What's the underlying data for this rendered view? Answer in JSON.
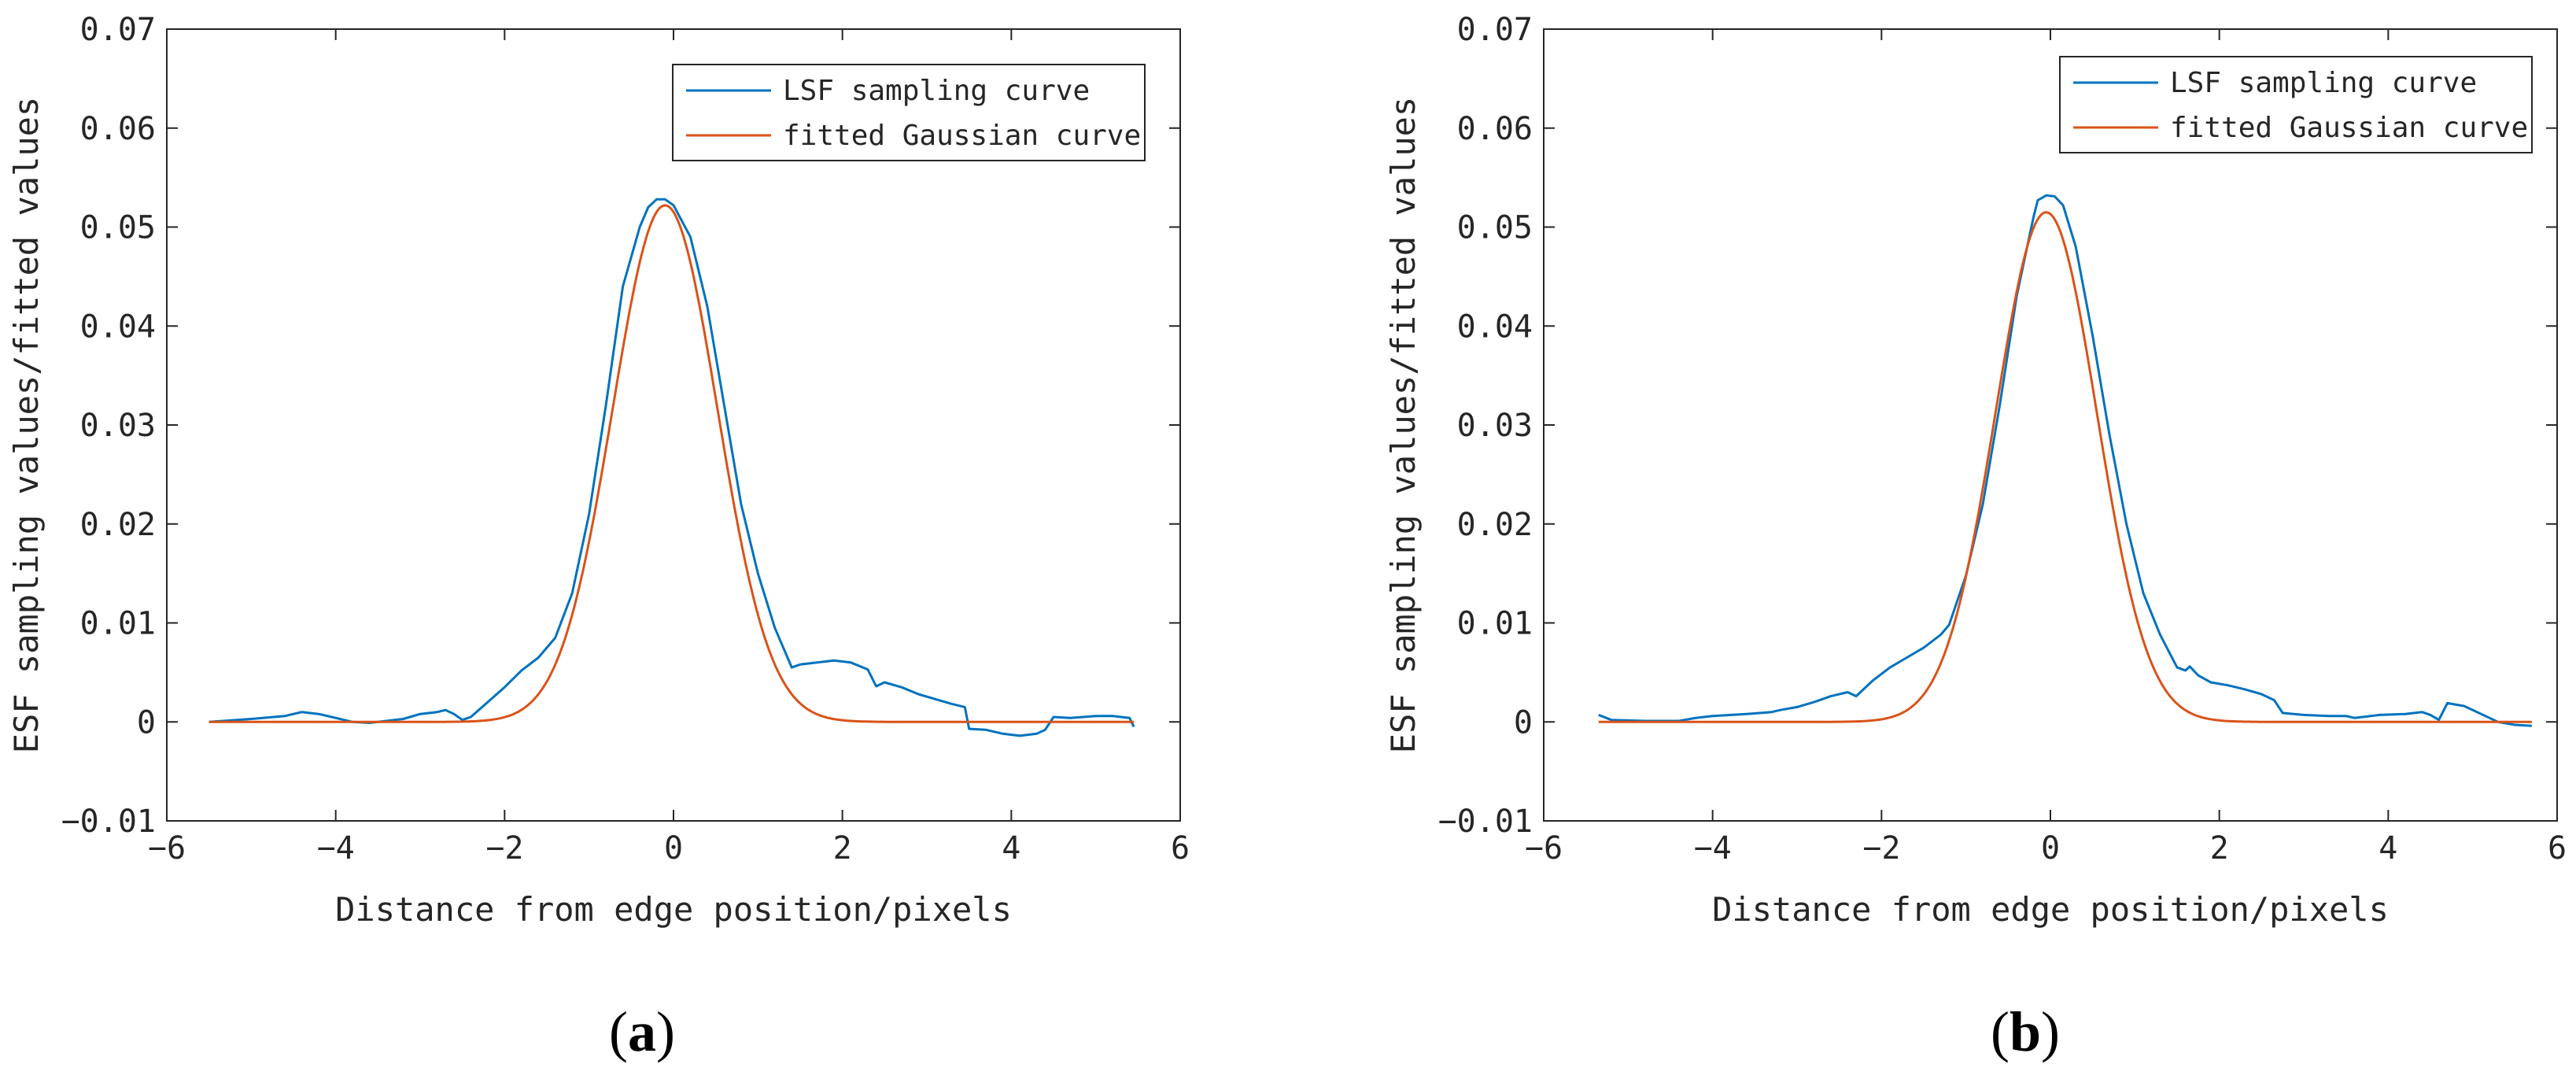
{
  "chart_data": [
    {
      "panel": "(a)",
      "panel_letter": "a",
      "type": "line",
      "title": "",
      "xlabel": "Distance from edge position/pixels",
      "ylabel": "ESF sampling values/fitted values",
      "xlim": [
        -6,
        6
      ],
      "ylim": [
        -0.01,
        0.07
      ],
      "xticks": [
        -6,
        -4,
        -2,
        0,
        2,
        4,
        6
      ],
      "xtick_labels": [
        "−6",
        "−4",
        "−2",
        "0",
        "2",
        "4",
        "6"
      ],
      "yticks": [
        -0.01,
        0,
        0.01,
        0.02,
        0.03,
        0.04,
        0.05,
        0.06,
        0.07
      ],
      "ytick_labels": [
        "−0.01",
        "0",
        "0.01",
        "0.02",
        "0.03",
        "0.04",
        "0.05",
        "0.06",
        "0.07"
      ],
      "grid": false,
      "legend_position": "top-right",
      "series": [
        {
          "name": "LSF sampling curve",
          "color": "#0072BD",
          "x": [
            -5.5,
            -5.0,
            -4.6,
            -4.4,
            -4.2,
            -4.0,
            -3.8,
            -3.6,
            -3.4,
            -3.2,
            -3.0,
            -2.8,
            -2.7,
            -2.6,
            -2.5,
            -2.4,
            -2.2,
            -2.0,
            -1.8,
            -1.6,
            -1.4,
            -1.2,
            -1.0,
            -0.8,
            -0.6,
            -0.4,
            -0.3,
            -0.2,
            -0.1,
            0.0,
            0.2,
            0.4,
            0.6,
            0.8,
            1.0,
            1.2,
            1.4,
            1.5,
            1.7,
            1.9,
            2.1,
            2.3,
            2.4,
            2.5,
            2.7,
            2.9,
            3.1,
            3.3,
            3.45,
            3.5,
            3.7,
            3.9,
            4.1,
            4.3,
            4.4,
            4.5,
            4.7,
            5.0,
            5.2,
            5.4,
            5.45
          ],
          "y": [
            0.0,
            0.0003,
            0.0006,
            0.001,
            0.0008,
            0.0004,
            0.0,
            -0.0001,
            0.0001,
            0.0003,
            0.0008,
            0.001,
            0.0012,
            0.0008,
            0.0002,
            0.0005,
            0.002,
            0.0035,
            0.0052,
            0.0065,
            0.0085,
            0.013,
            0.021,
            0.032,
            0.044,
            0.05,
            0.052,
            0.0528,
            0.0528,
            0.0522,
            0.049,
            0.042,
            0.032,
            0.022,
            0.015,
            0.0095,
            0.0055,
            0.0058,
            0.006,
            0.0062,
            0.006,
            0.0053,
            0.0036,
            0.004,
            0.0035,
            0.0028,
            0.0023,
            0.0018,
            0.0015,
            -0.0007,
            -0.0008,
            -0.0012,
            -0.0014,
            -0.0012,
            -0.0008,
            0.0005,
            0.0004,
            0.0006,
            0.0006,
            0.0004,
            -0.0005
          ]
        },
        {
          "name": "fitted Gaussian curve",
          "color": "#D95319",
          "gaussian": {
            "amplitude": 0.0522,
            "mean": -0.1,
            "sigma": 0.62,
            "x_start": -5.5,
            "x_end": 5.45
          }
        }
      ]
    },
    {
      "panel": "(b)",
      "panel_letter": "b",
      "type": "line",
      "title": "",
      "xlabel": "Distance from edge position/pixels",
      "ylabel": "ESF sampling values/fitted values",
      "xlim": [
        -6,
        6
      ],
      "ylim": [
        -0.01,
        0.07
      ],
      "xticks": [
        -6,
        -4,
        -2,
        0,
        2,
        4,
        6
      ],
      "xtick_labels": [
        "−6",
        "−4",
        "−2",
        "0",
        "2",
        "4",
        "6"
      ],
      "yticks": [
        -0.01,
        0,
        0.01,
        0.02,
        0.03,
        0.04,
        0.05,
        0.06,
        0.07
      ],
      "ytick_labels": [
        "−0.01",
        "0",
        "0.01",
        "0.02",
        "0.03",
        "0.04",
        "0.05",
        "0.06",
        "0.07"
      ],
      "grid": false,
      "legend_position": "top-right",
      "series": [
        {
          "name": "LSF sampling curve",
          "color": "#0072BD",
          "x": [
            -5.35,
            -5.2,
            -4.8,
            -4.4,
            -4.2,
            -4.0,
            -3.6,
            -3.3,
            -3.2,
            -3.0,
            -2.8,
            -2.6,
            -2.4,
            -2.3,
            -2.1,
            -1.9,
            -1.7,
            -1.5,
            -1.3,
            -1.2,
            -1.0,
            -0.8,
            -0.6,
            -0.4,
            -0.2,
            -0.15,
            -0.05,
            0.05,
            0.15,
            0.3,
            0.5,
            0.7,
            0.9,
            1.1,
            1.3,
            1.5,
            1.6,
            1.65,
            1.75,
            1.9,
            2.1,
            2.3,
            2.5,
            2.65,
            2.75,
            3.0,
            3.3,
            3.5,
            3.6,
            3.9,
            4.2,
            4.4,
            4.5,
            4.6,
            4.7,
            4.9,
            5.1,
            5.3,
            5.5,
            5.7
          ],
          "y": [
            0.0007,
            0.0002,
            0.0001,
            0.0001,
            0.0004,
            0.0006,
            0.0008,
            0.001,
            0.0012,
            0.0015,
            0.002,
            0.0026,
            0.003,
            0.0026,
            0.0042,
            0.0055,
            0.0065,
            0.0075,
            0.0088,
            0.0098,
            0.0148,
            0.022,
            0.032,
            0.043,
            0.051,
            0.0527,
            0.0532,
            0.0531,
            0.0522,
            0.048,
            0.039,
            0.029,
            0.02,
            0.013,
            0.0088,
            0.0055,
            0.0052,
            0.0056,
            0.0047,
            0.004,
            0.0037,
            0.0033,
            0.0028,
            0.0022,
            0.0009,
            0.0007,
            0.0006,
            0.0006,
            0.0004,
            0.0007,
            0.0008,
            0.001,
            0.0007,
            0.0002,
            0.0019,
            0.0016,
            0.0008,
            0.0,
            -0.0003,
            -0.0004
          ]
        },
        {
          "name": "fitted Gaussian curve",
          "color": "#D95319",
          "gaussian": {
            "amplitude": 0.0515,
            "mean": -0.05,
            "sigma": 0.6,
            "x_start": -5.35,
            "x_end": 5.7
          }
        }
      ]
    }
  ]
}
